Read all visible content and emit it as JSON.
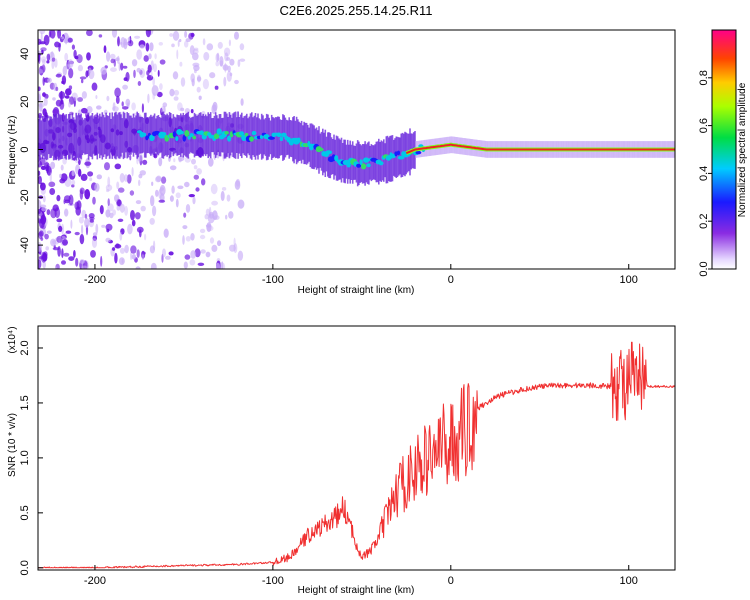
{
  "title": "C2E6.2025.255.14.25.R11",
  "chart_data": [
    {
      "type": "heatmap",
      "xlabel": "Height of straight line (km)",
      "ylabel": "Frequency (Hz)",
      "xlim": [
        -232,
        126
      ],
      "ylim": [
        -50,
        50
      ],
      "xticks": [
        -200,
        -100,
        0,
        100
      ],
      "yticks": [
        -40,
        -20,
        0,
        20,
        40
      ],
      "colorbar": {
        "label": "Normalized spectral amplitude",
        "range": [
          0,
          1
        ],
        "ticks": [
          0.0,
          0.2,
          0.4,
          0.6,
          0.8
        ],
        "colormap": "rainbow (purple to red)"
      },
      "ridge": {
        "x": [
          -232,
          -180,
          -150,
          -120,
          -100,
          -92,
          -80,
          -70,
          -60,
          -50,
          -40,
          -30,
          -20,
          -10,
          0,
          10,
          20,
          50,
          100,
          126
        ],
        "y": [
          5,
          6,
          6,
          6,
          5,
          5,
          2,
          -2,
          -5,
          -6,
          -5,
          -3,
          0,
          1,
          2,
          1,
          0,
          0,
          0,
          0
        ]
      }
    },
    {
      "type": "line",
      "xlabel": "Height of straight line (km)",
      "ylabel": "SNR (10 * v/v)",
      "multiplier": "(x10⁴)",
      "xlim": [
        -232,
        126
      ],
      "ylim": [
        -0.02,
        2.2
      ],
      "xticks": [
        -200,
        -100,
        0,
        100
      ],
      "yticks": [
        0.0,
        0.5,
        1.0,
        1.5,
        2.0
      ],
      "color": "#f03030",
      "series": [
        {
          "x": [
            -232,
            -200,
            -150,
            -120,
            -100,
            -90,
            -80,
            -70,
            -65,
            -60,
            -55,
            -50,
            -45,
            -40,
            -35,
            -30,
            -25,
            -20,
            -15,
            -10,
            -5,
            0,
            5,
            10,
            15,
            20,
            25,
            30,
            40,
            50,
            60,
            70,
            80,
            90,
            95,
            100,
            105,
            110,
            126
          ],
          "y": [
            0.0,
            0.0,
            0.02,
            0.03,
            0.05,
            0.1,
            0.3,
            0.4,
            0.45,
            0.55,
            0.3,
            0.1,
            0.15,
            0.3,
            0.5,
            0.7,
            0.8,
            0.9,
            0.95,
            1.05,
            1.1,
            1.15,
            1.2,
            1.3,
            1.45,
            1.5,
            1.55,
            1.58,
            1.62,
            1.65,
            1.66,
            1.66,
            1.66,
            1.65,
            1.68,
            1.7,
            1.72,
            1.65,
            1.65
          ]
        }
      ]
    }
  ]
}
